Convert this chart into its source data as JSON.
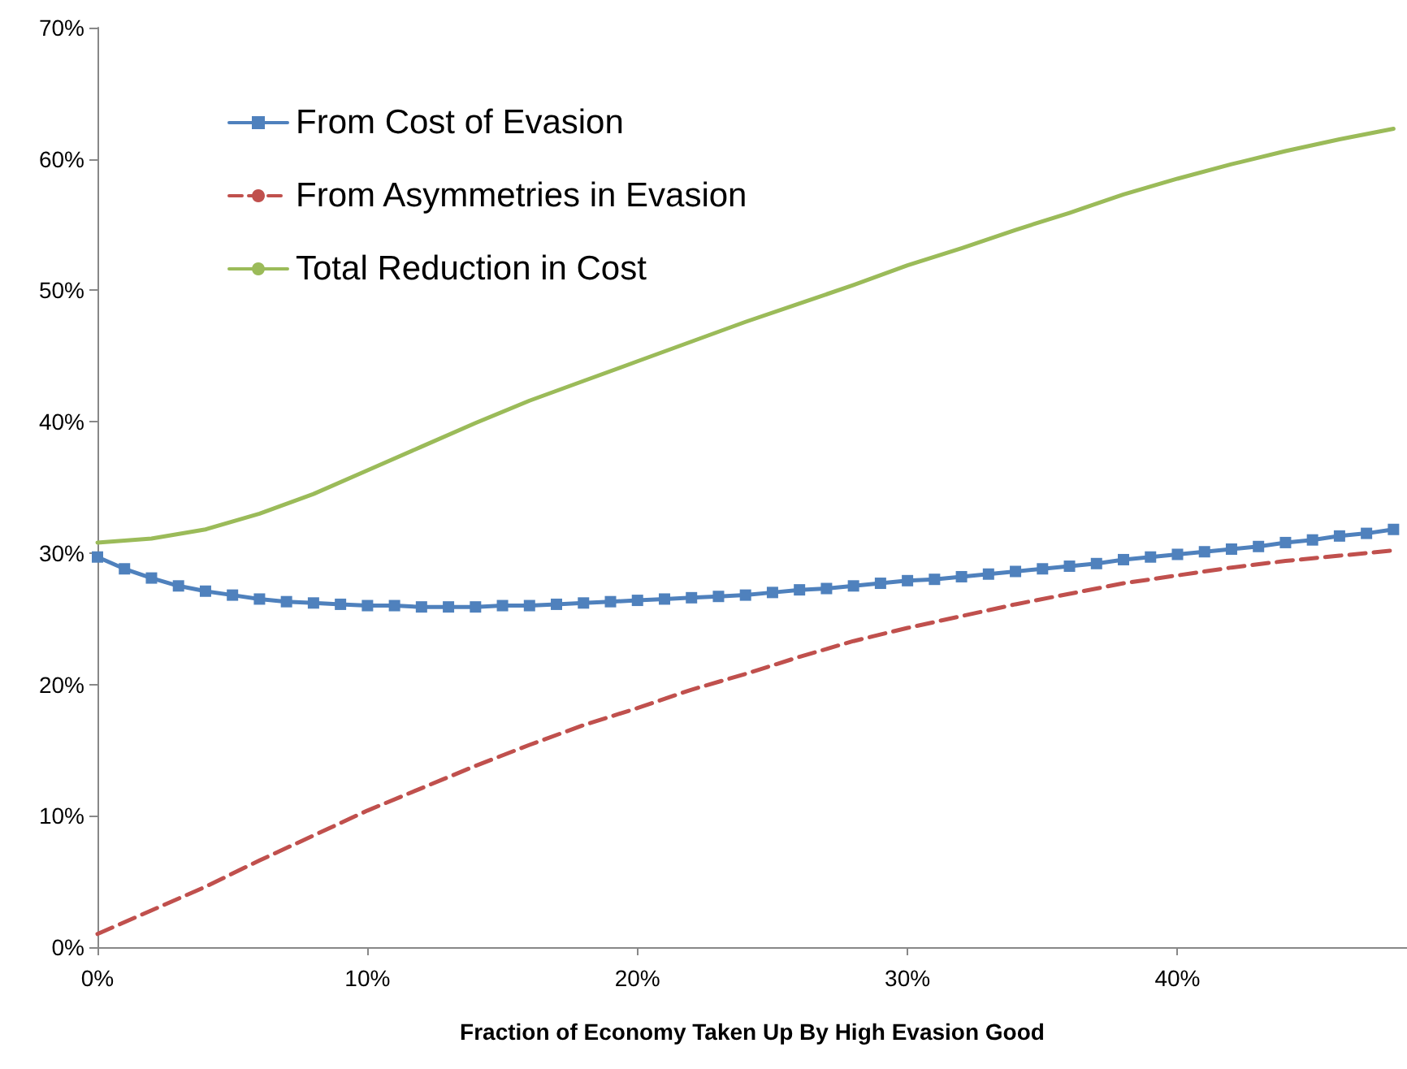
{
  "chart_data": {
    "type": "line",
    "xlabel": "Fraction of Economy Taken Up By High Evasion Good",
    "xlim": [
      0,
      48.5
    ],
    "xticks": [
      {
        "value": 0,
        "label": "0%"
      },
      {
        "value": 10,
        "label": "10%"
      },
      {
        "value": 20,
        "label": "20%"
      },
      {
        "value": 30,
        "label": "30%"
      },
      {
        "value": 40,
        "label": "40%"
      }
    ],
    "ylim": [
      0,
      70
    ],
    "yticks": [
      {
        "value": 0,
        "label": "0%"
      },
      {
        "value": 10,
        "label": "10%"
      },
      {
        "value": 20,
        "label": "20%"
      },
      {
        "value": 30,
        "label": "30%"
      },
      {
        "value": 40,
        "label": "40%"
      },
      {
        "value": 50,
        "label": "50%"
      },
      {
        "value": 60,
        "label": "60%"
      },
      {
        "value": 70,
        "label": "70%"
      }
    ],
    "grid": false,
    "legend": "top left",
    "series": [
      {
        "name": "From Cost of Evasion",
        "color": "#4f81bd",
        "marker": "square",
        "line_style": "solid",
        "x": [
          0,
          1,
          2,
          3,
          4,
          5,
          6,
          7,
          8,
          9,
          10,
          11,
          12,
          13,
          14,
          15,
          16,
          17,
          18,
          19,
          20,
          21,
          22,
          23,
          24,
          25,
          26,
          27,
          28,
          29,
          30,
          31,
          32,
          33,
          34,
          35,
          36,
          37,
          38,
          39,
          40,
          41,
          42,
          43,
          44,
          45,
          46,
          47,
          48
        ],
        "values": [
          29.7,
          28.8,
          28.1,
          27.5,
          27.1,
          26.8,
          26.5,
          26.3,
          26.2,
          26.1,
          26.0,
          26.0,
          25.9,
          25.9,
          25.9,
          26.0,
          26.0,
          26.1,
          26.2,
          26.3,
          26.4,
          26.5,
          26.6,
          26.7,
          26.8,
          27.0,
          27.2,
          27.3,
          27.5,
          27.7,
          27.9,
          28.0,
          28.2,
          28.4,
          28.6,
          28.8,
          29.0,
          29.2,
          29.5,
          29.7,
          29.9,
          30.1,
          30.3,
          30.5,
          30.8,
          31.0,
          31.3,
          31.5,
          31.8
        ]
      },
      {
        "name": "From Asymmetries in Evasion",
        "color": "#c0504d",
        "marker": "none",
        "line_style": "dashed",
        "x": [
          0,
          2,
          4,
          6,
          8,
          10,
          12,
          14,
          16,
          18,
          20,
          22,
          24,
          26,
          28,
          30,
          32,
          34,
          36,
          38,
          40,
          42,
          44,
          46,
          48
        ],
        "values": [
          1.0,
          2.8,
          4.6,
          6.6,
          8.5,
          10.4,
          12.1,
          13.8,
          15.4,
          16.9,
          18.2,
          19.6,
          20.8,
          22.1,
          23.3,
          24.3,
          25.2,
          26.1,
          26.9,
          27.7,
          28.3,
          28.9,
          29.4,
          29.8,
          30.2
        ]
      },
      {
        "name": "Total Reduction in Cost",
        "color": "#9bbb59",
        "marker": "none",
        "line_style": "solid",
        "x": [
          0,
          2,
          4,
          6,
          8,
          10,
          12,
          14,
          16,
          18,
          20,
          22,
          24,
          26,
          28,
          30,
          32,
          34,
          36,
          38,
          40,
          42,
          44,
          46,
          48
        ],
        "values": [
          30.8,
          31.1,
          31.8,
          33.0,
          34.5,
          36.3,
          38.1,
          39.9,
          41.6,
          43.1,
          44.6,
          46.1,
          47.6,
          49.0,
          50.4,
          51.9,
          53.2,
          54.6,
          55.9,
          57.3,
          58.5,
          59.6,
          60.6,
          61.5,
          62.3
        ]
      }
    ]
  }
}
